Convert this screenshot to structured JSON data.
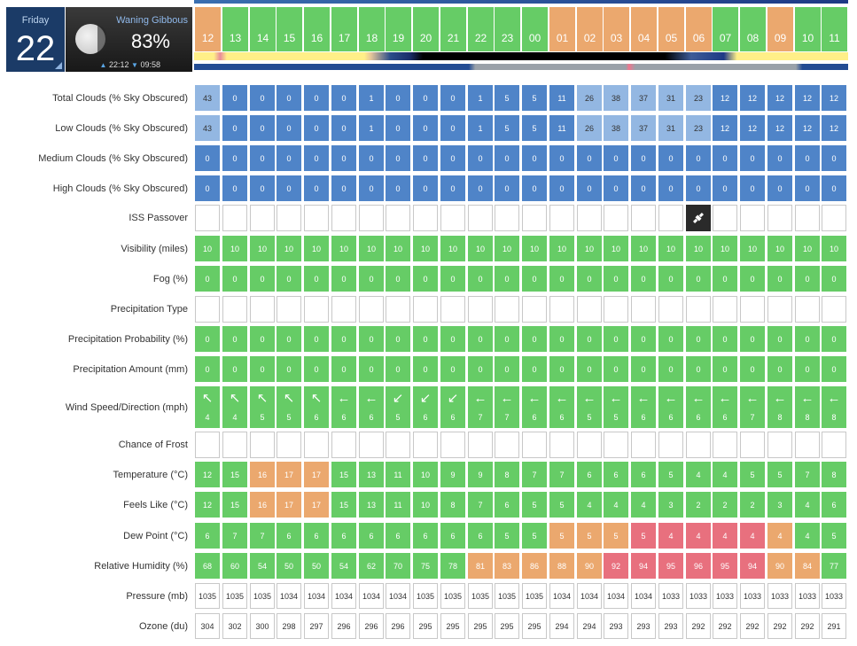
{
  "header": {
    "day_name": "Friday",
    "day_number": "22",
    "moon_phase": "Waning Gibbous",
    "moon_illumination": "83%",
    "moonrise": "22:12",
    "moonset": "09:58"
  },
  "hours": [
    "12",
    "13",
    "14",
    "15",
    "16",
    "17",
    "18",
    "19",
    "20",
    "21",
    "22",
    "23",
    "00",
    "01",
    "02",
    "03",
    "04",
    "05",
    "06",
    "07",
    "08",
    "09",
    "10",
    "11"
  ],
  "hour_types": [
    "day",
    "night",
    "night",
    "night",
    "night",
    "night",
    "night",
    "night",
    "night",
    "night",
    "night",
    "night",
    "night",
    "day",
    "day",
    "day",
    "day",
    "day",
    "day",
    "night",
    "night",
    "day",
    "night",
    "night"
  ],
  "rows": [
    {
      "label": "Total Clouds (% Sky Obscured)",
      "type": "clouds",
      "values": [
        "43",
        "0",
        "0",
        "0",
        "0",
        "0",
        "1",
        "0",
        "0",
        "0",
        "1",
        "5",
        "5",
        "11",
        "26",
        "38",
        "37",
        "31",
        "23",
        "12",
        "12",
        "12",
        "12",
        "12"
      ]
    },
    {
      "label": "Low Clouds (% Sky Obscured)",
      "type": "clouds",
      "values": [
        "43",
        "0",
        "0",
        "0",
        "0",
        "0",
        "1",
        "0",
        "0",
        "0",
        "1",
        "5",
        "5",
        "11",
        "26",
        "38",
        "37",
        "31",
        "23",
        "12",
        "12",
        "12",
        "12",
        "12"
      ]
    },
    {
      "label": "Medium Clouds (% Sky Obscured)",
      "type": "clouds",
      "values": [
        "0",
        "0",
        "0",
        "0",
        "0",
        "0",
        "0",
        "0",
        "0",
        "0",
        "0",
        "0",
        "0",
        "0",
        "0",
        "0",
        "0",
        "0",
        "0",
        "0",
        "0",
        "0",
        "0",
        "0"
      ]
    },
    {
      "label": "High Clouds (% Sky Obscured)",
      "type": "clouds",
      "values": [
        "0",
        "0",
        "0",
        "0",
        "0",
        "0",
        "0",
        "0",
        "0",
        "0",
        "0",
        "0",
        "0",
        "0",
        "0",
        "0",
        "0",
        "0",
        "0",
        "0",
        "0",
        "0",
        "0",
        "0"
      ]
    },
    {
      "label": "ISS Passover",
      "type": "iss",
      "values": [
        "",
        "",
        "",
        "",
        "",
        "",
        "",
        "",
        "",
        "",
        "",
        "",
        "",
        "",
        "",
        "",
        "",
        "",
        "iss",
        "",
        "",
        "",
        "",
        ""
      ]
    },
    {
      "label": "Visibility (miles)",
      "type": "green",
      "values": [
        "10",
        "10",
        "10",
        "10",
        "10",
        "10",
        "10",
        "10",
        "10",
        "10",
        "10",
        "10",
        "10",
        "10",
        "10",
        "10",
        "10",
        "10",
        "10",
        "10",
        "10",
        "10",
        "10",
        "10"
      ]
    },
    {
      "label": "Fog (%)",
      "type": "green",
      "values": [
        "0",
        "0",
        "0",
        "0",
        "0",
        "0",
        "0",
        "0",
        "0",
        "0",
        "0",
        "0",
        "0",
        "0",
        "0",
        "0",
        "0",
        "0",
        "0",
        "0",
        "0",
        "0",
        "0",
        "0"
      ]
    },
    {
      "label": "Precipitation Type",
      "type": "empty",
      "values": [
        "",
        "",
        "",
        "",
        "",
        "",
        "",
        "",
        "",
        "",
        "",
        "",
        "",
        "",
        "",
        "",
        "",
        "",
        "",
        "",
        "",
        "",
        "",
        ""
      ]
    },
    {
      "label": "Precipitation Probability (%)",
      "type": "green",
      "values": [
        "0",
        "0",
        "0",
        "0",
        "0",
        "0",
        "0",
        "0",
        "0",
        "0",
        "0",
        "0",
        "0",
        "0",
        "0",
        "0",
        "0",
        "0",
        "0",
        "0",
        "0",
        "0",
        "0",
        "0"
      ]
    },
    {
      "label": "Precipitation Amount (mm)",
      "type": "green",
      "values": [
        "0",
        "0",
        "0",
        "0",
        "0",
        "0",
        "0",
        "0",
        "0",
        "0",
        "0",
        "0",
        "0",
        "0",
        "0",
        "0",
        "0",
        "0",
        "0",
        "0",
        "0",
        "0",
        "0",
        "0"
      ]
    },
    {
      "label": "Wind Speed/Direction (mph)",
      "type": "wind",
      "values": [
        "4",
        "4",
        "5",
        "5",
        "6",
        "6",
        "6",
        "5",
        "6",
        "6",
        "7",
        "7",
        "6",
        "6",
        "5",
        "5",
        "6",
        "6",
        "6",
        "6",
        "7",
        "8",
        "8",
        "8"
      ],
      "arrows": [
        "↖",
        "↖",
        "↖",
        "↖",
        "↖",
        "←",
        "←",
        "↙",
        "↙",
        "↙",
        "←",
        "←",
        "←",
        "←",
        "←",
        "←",
        "←",
        "←",
        "←",
        "←",
        "←",
        "←",
        "←",
        "←"
      ]
    },
    {
      "label": "Chance of Frost",
      "type": "empty",
      "values": [
        "",
        "",
        "",
        "",
        "",
        "",
        "",
        "",
        "",
        "",
        "",
        "",
        "",
        "",
        "",
        "",
        "",
        "",
        "",
        "",
        "",
        "",
        "",
        ""
      ]
    },
    {
      "label": "Temperature (°C)",
      "type": "colored",
      "values": [
        "12",
        "15",
        "16",
        "17",
        "17",
        "15",
        "13",
        "11",
        "10",
        "9",
        "9",
        "8",
        "7",
        "7",
        "6",
        "6",
        "6",
        "5",
        "4",
        "4",
        "5",
        "5",
        "7",
        "8"
      ],
      "colors": [
        "g",
        "g",
        "o",
        "o",
        "o",
        "g",
        "g",
        "g",
        "g",
        "g",
        "g",
        "g",
        "g",
        "g",
        "g",
        "g",
        "g",
        "g",
        "g",
        "g",
        "g",
        "g",
        "g",
        "g"
      ]
    },
    {
      "label": "Feels Like (°C)",
      "type": "colored",
      "values": [
        "12",
        "15",
        "16",
        "17",
        "17",
        "15",
        "13",
        "11",
        "10",
        "8",
        "7",
        "6",
        "5",
        "5",
        "4",
        "4",
        "4",
        "3",
        "2",
        "2",
        "2",
        "3",
        "4",
        "6"
      ],
      "colors": [
        "g",
        "g",
        "o",
        "o",
        "o",
        "g",
        "g",
        "g",
        "g",
        "g",
        "g",
        "g",
        "g",
        "g",
        "g",
        "g",
        "g",
        "g",
        "g",
        "g",
        "g",
        "g",
        "g",
        "g"
      ]
    },
    {
      "label": "Dew Point (°C)",
      "type": "colored",
      "values": [
        "6",
        "7",
        "7",
        "6",
        "6",
        "6",
        "6",
        "6",
        "6",
        "6",
        "6",
        "5",
        "5",
        "5",
        "5",
        "5",
        "5",
        "4",
        "4",
        "4",
        "4",
        "4",
        "4",
        "5"
      ],
      "colors": [
        "g",
        "g",
        "g",
        "g",
        "g",
        "g",
        "g",
        "g",
        "g",
        "g",
        "g",
        "g",
        "g",
        "o",
        "o",
        "o",
        "r",
        "r",
        "r",
        "r",
        "r",
        "o",
        "g",
        "g"
      ]
    },
    {
      "label": "Relative Humidity (%)",
      "type": "colored",
      "values": [
        "68",
        "60",
        "54",
        "50",
        "50",
        "54",
        "62",
        "70",
        "75",
        "78",
        "81",
        "83",
        "86",
        "88",
        "90",
        "92",
        "94",
        "95",
        "96",
        "95",
        "94",
        "90",
        "84",
        "77"
      ],
      "colors": [
        "g",
        "g",
        "g",
        "g",
        "g",
        "g",
        "g",
        "g",
        "g",
        "g",
        "o",
        "o",
        "o",
        "o",
        "o",
        "r",
        "r",
        "r",
        "r",
        "r",
        "r",
        "o",
        "o",
        "g"
      ]
    },
    {
      "label": "Pressure (mb)",
      "type": "white",
      "values": [
        "1035",
        "1035",
        "1035",
        "1034",
        "1034",
        "1034",
        "1034",
        "1034",
        "1035",
        "1035",
        "1035",
        "1035",
        "1035",
        "1034",
        "1034",
        "1034",
        "1034",
        "1033",
        "1033",
        "1033",
        "1033",
        "1033",
        "1033",
        "1033"
      ]
    },
    {
      "label": "Ozone (du)",
      "type": "white",
      "values": [
        "304",
        "302",
        "300",
        "298",
        "297",
        "296",
        "296",
        "296",
        "295",
        "295",
        "295",
        "295",
        "295",
        "294",
        "294",
        "293",
        "293",
        "293",
        "292",
        "292",
        "292",
        "292",
        "292",
        "291"
      ]
    }
  ],
  "colors": {
    "green": "#66cc66",
    "orange": "#eba86e",
    "red": "#e8707e",
    "blue": "#4f84c8",
    "light_blue": "#93b7e2",
    "navy": "#1b3b67"
  },
  "icons": {
    "iss": "satellite-icon",
    "wind": "wind-direction-arrow-icon"
  }
}
